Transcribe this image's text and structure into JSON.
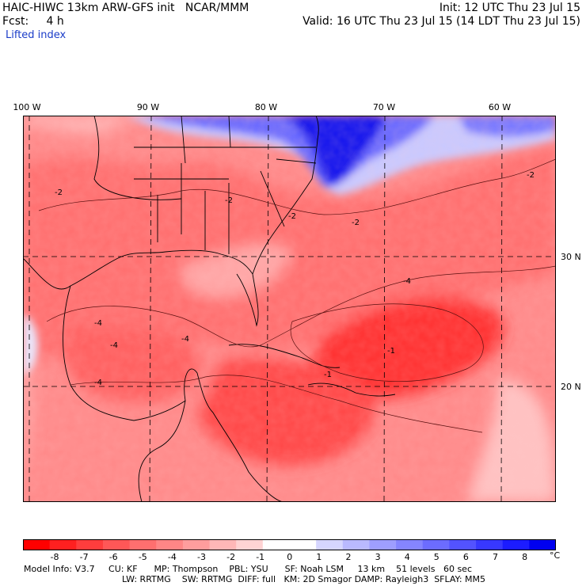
{
  "header": {
    "left_line1": "HAIC-HIWC 13km ARW-GFS init   NCAR/MMM",
    "left_line2": "Fcst:     4 h",
    "field": "Lifted index",
    "init": "Init: 12 UTC Thu 23 Jul 15",
    "valid": "Valid: 16 UTC Thu 23 Jul 15 (14 LDT Thu 23 Jul 15)"
  },
  "map": {
    "lon_labels": [
      "100 W",
      "90 W",
      "80 W",
      "70 W",
      "60 W"
    ],
    "lat_labels": [
      "30 N",
      "20 N"
    ],
    "contour_labels": [
      "-2",
      "-2",
      "-4",
      "-4",
      "-4",
      "-2",
      "-1",
      "-1",
      "-4",
      "-2",
      "-4",
      "-2"
    ]
  },
  "colorbar": {
    "unit": "°C",
    "ticks": [
      "-8",
      "-7",
      "-6",
      "-5",
      "-4",
      "-3",
      "-2",
      "-1",
      "0",
      "1",
      "2",
      "3",
      "4",
      "5",
      "6",
      "7",
      "8"
    ],
    "colors": [
      "#ff0000",
      "#ff2020",
      "#ff3d3d",
      "#ff5757",
      "#ff6f6f",
      "#ff8686",
      "#ff9d9d",
      "#ffb7b7",
      "#ffd3d3",
      "#ffffff",
      "#ffffff",
      "#d6d6ff",
      "#b9b9ff",
      "#9e9eff",
      "#8585ff",
      "#6c6cff",
      "#5353ff",
      "#3838ff",
      "#1c1cff",
      "#0000f0"
    ]
  },
  "model_info": {
    "line1": "Model Info: V3.7     CU: KF      MP: Thompson    PBL: YSU      SF: Noah LSM     13 km    51 levels   60 sec",
    "line2": "LW: RRTMG    SW: RRTMG  DIFF: full   KM: 2D Smagor DAMP: Rayleigh3  SFLAY: MM5"
  }
}
